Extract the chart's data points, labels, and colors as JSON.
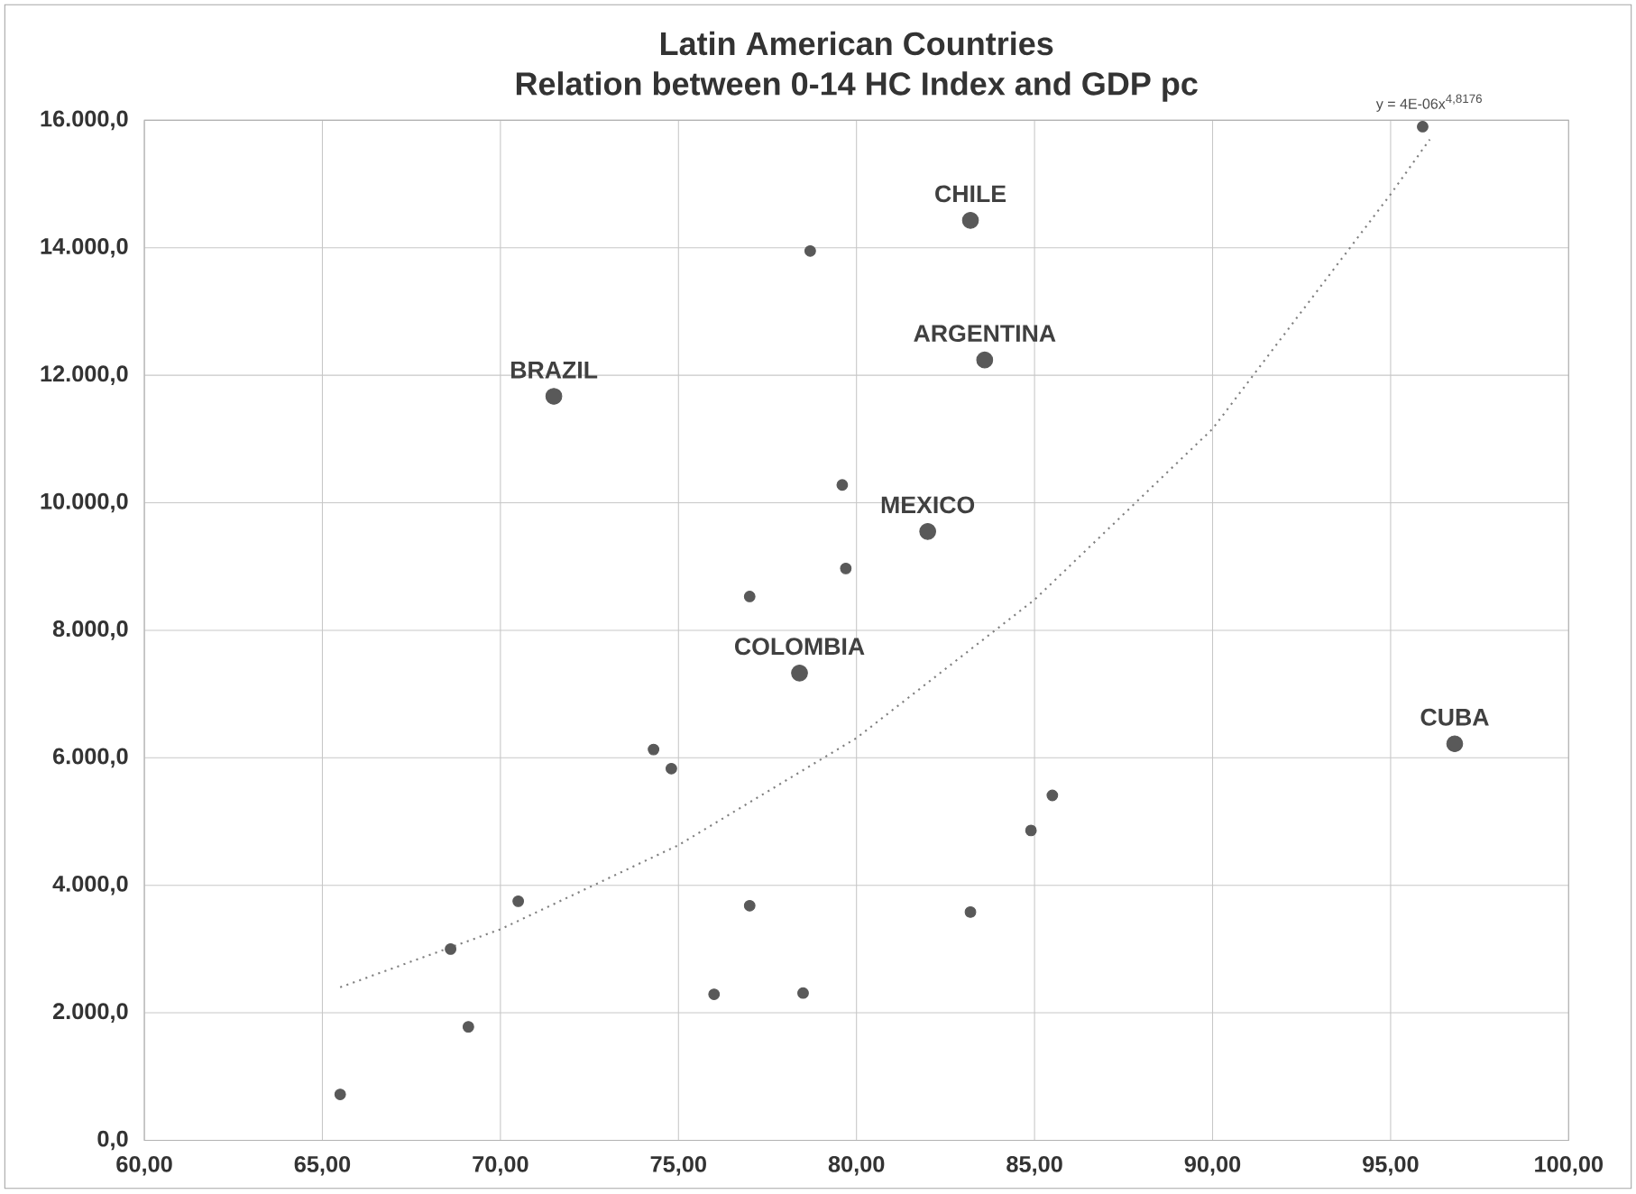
{
  "chart_data": {
    "type": "scatter",
    "title": "Latin American Countries",
    "subtitle": "Relation between 0-14 HC Index and GDP pc",
    "xlim": [
      60,
      100
    ],
    "ylim": [
      0,
      16000
    ],
    "xticks": [
      {
        "value": 60,
        "label": "60,00"
      },
      {
        "value": 65,
        "label": "65,00"
      },
      {
        "value": 70,
        "label": "70,00"
      },
      {
        "value": 75,
        "label": "75,00"
      },
      {
        "value": 80,
        "label": "80,00"
      },
      {
        "value": 85,
        "label": "85,00"
      },
      {
        "value": 90,
        "label": "90,00"
      },
      {
        "value": 95,
        "label": "95,00"
      },
      {
        "value": 100,
        "label": "100,00"
      }
    ],
    "yticks": [
      {
        "value": 0,
        "label": "0,0"
      },
      {
        "value": 2000,
        "label": "2.000,0"
      },
      {
        "value": 4000,
        "label": "4.000,0"
      },
      {
        "value": 6000,
        "label": "6.000,0"
      },
      {
        "value": 8000,
        "label": "8.000,0"
      },
      {
        "value": 10000,
        "label": "10.000,0"
      },
      {
        "value": 12000,
        "label": "12.000,0"
      },
      {
        "value": 14000,
        "label": "14.000,0"
      },
      {
        "value": 16000,
        "label": "16.000,0"
      }
    ],
    "grid": true,
    "legend": false,
    "marker": "circle",
    "series": [
      {
        "color": "#595959",
        "x": [
          65.5,
          68.6,
          69.1,
          70.5,
          74.3,
          74.8,
          76.0,
          77.0,
          77.0,
          78.5,
          79.7,
          83.2,
          84.9,
          85.5,
          95.9,
          78.7,
          79.6
        ],
        "values": [
          720,
          3000,
          1780,
          3750,
          6130,
          5830,
          2290,
          8530,
          3680,
          2310,
          8970,
          3580,
          4860,
          5410,
          15900,
          13950,
          10280
        ]
      },
      {
        "color": "#595959",
        "x": [
          71.5,
          78.4,
          82.0,
          83.6,
          83.2,
          96.8
        ],
        "values": [
          11670,
          7330,
          9550,
          12240,
          14430,
          6220
        ]
      },
      {
        "type": "line",
        "color": "#808080",
        "line_style": "dotted",
        "marker": "none",
        "x": [
          65.5,
          70,
          75,
          80,
          85,
          90,
          95,
          96.1
        ],
        "values": [
          2400,
          3310,
          4630,
          6310,
          8480,
          11160,
          14840,
          15700
        ]
      }
    ],
    "annotations": [
      {
        "text": "BRAZIL",
        "x": 71.5,
        "y": 11670
      },
      {
        "text": "COLOMBIA",
        "x": 78.4,
        "y": 7330
      },
      {
        "text": "MEXICO",
        "x": 82.0,
        "y": 9550
      },
      {
        "text": "ARGENTINA",
        "x": 83.6,
        "y": 12240
      },
      {
        "text": "CHILE",
        "x": 83.2,
        "y": 14430
      },
      {
        "text": "CUBA",
        "x": 96.8,
        "y": 6220
      },
      "y = 4E-06x$^{4,8176}$"
    ]
  }
}
